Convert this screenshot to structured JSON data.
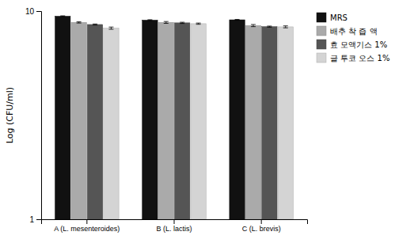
{
  "chart_data": {
    "type": "bar",
    "categories": [
      "A (L. mesenteroides)",
      "B (L. lactis)",
      "C (L. brevis)"
    ],
    "series": [
      {
        "name": "MRS",
        "color": "#111111",
        "values": [
          9.45,
          9.05,
          9.08
        ],
        "errors": [
          0.04,
          0.04,
          0.04
        ]
      },
      {
        "name": "배추 착 즙 액",
        "color": "#aaaaaa",
        "values": [
          8.82,
          8.82,
          8.52
        ],
        "errors": [
          0.06,
          0.09,
          0.1
        ]
      },
      {
        "name": "효 모액기스 1%",
        "color": "#555555",
        "values": [
          8.62,
          8.78,
          8.42
        ],
        "errors": [
          0.05,
          0.06,
          0.05
        ]
      },
      {
        "name": "글 투코 오스 1%",
        "color": "#d4d4d4",
        "values": [
          8.28,
          8.7,
          8.4
        ],
        "errors": [
          0.1,
          0.06,
          0.09
        ]
      }
    ],
    "ylabel": "Log (CFU/ml)",
    "ylim": [
      1,
      10
    ],
    "yticks": [
      1,
      10
    ],
    "log": "y",
    "grid": false,
    "legend": "upper right"
  }
}
